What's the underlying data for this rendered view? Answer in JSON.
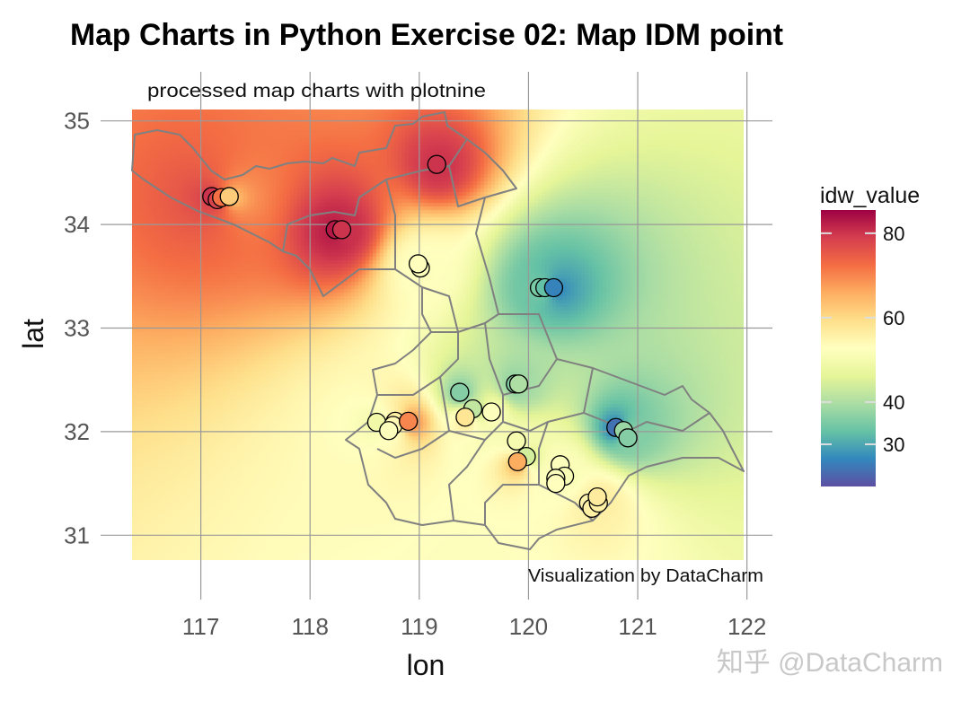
{
  "chart_data": {
    "type": "scatter",
    "title": "Map Charts in Python Exercise 02: Map IDM point",
    "subtitle": "processed map charts with plotnine",
    "caption": "Visualization by DataCharm",
    "xlabel": "lon",
    "ylabel": "lat",
    "xlim": [
      116.37,
      121.97
    ],
    "ylim": [
      30.76,
      35.11
    ],
    "x_ticks": [
      "117",
      "118",
      "119",
      "120",
      "121",
      "122"
    ],
    "y_ticks": [
      "31",
      "32",
      "33",
      "34",
      "35"
    ],
    "grid": true,
    "background": "IDW interpolated raster of idw_value",
    "legend": {
      "title": "idw_value",
      "position": "right",
      "ticks": [
        "30",
        "40",
        "60",
        "80"
      ],
      "range": [
        20,
        85.5
      ],
      "colormap": "Spectral (reversed)",
      "colors": [
        "#5e4fa2",
        "#3288bd",
        "#66c2a5",
        "#abdda4",
        "#e6f598",
        "#ffffbf",
        "#fee08b",
        "#fdae61",
        "#f46d43",
        "#d53e4f",
        "#9e0142"
      ]
    },
    "points": [
      {
        "lon": 117.1,
        "lat": 34.27,
        "value": 80
      },
      {
        "lon": 117.15,
        "lat": 34.24,
        "value": 78
      },
      {
        "lon": 117.19,
        "lat": 34.26,
        "value": 72
      },
      {
        "lon": 117.26,
        "lat": 34.27,
        "value": 62
      },
      {
        "lon": 118.23,
        "lat": 33.95,
        "value": 83
      },
      {
        "lon": 118.29,
        "lat": 33.95,
        "value": 80
      },
      {
        "lon": 119.16,
        "lat": 34.58,
        "value": 80
      },
      {
        "lon": 119.01,
        "lat": 33.58,
        "value": 52
      },
      {
        "lon": 118.99,
        "lat": 33.62,
        "value": 53
      },
      {
        "lon": 120.1,
        "lat": 33.39,
        "value": 35
      },
      {
        "lon": 120.15,
        "lat": 33.39,
        "value": 33
      },
      {
        "lon": 120.23,
        "lat": 33.39,
        "value": 26
      },
      {
        "lon": 119.37,
        "lat": 32.38,
        "value": 36
      },
      {
        "lon": 119.49,
        "lat": 32.22,
        "value": 42
      },
      {
        "lon": 119.66,
        "lat": 32.19,
        "value": 52
      },
      {
        "lon": 119.42,
        "lat": 32.14,
        "value": 58
      },
      {
        "lon": 119.88,
        "lat": 32.46,
        "value": 36
      },
      {
        "lon": 119.91,
        "lat": 32.46,
        "value": 40
      },
      {
        "lon": 118.61,
        "lat": 32.09,
        "value": 49
      },
      {
        "lon": 118.78,
        "lat": 32.1,
        "value": 56
      },
      {
        "lon": 118.76,
        "lat": 32.06,
        "value": 54
      },
      {
        "lon": 118.72,
        "lat": 32.01,
        "value": 52
      },
      {
        "lon": 118.9,
        "lat": 32.1,
        "value": 70
      },
      {
        "lon": 119.89,
        "lat": 31.91,
        "value": 50
      },
      {
        "lon": 119.98,
        "lat": 31.76,
        "value": 44
      },
      {
        "lon": 119.9,
        "lat": 31.71,
        "value": 66
      },
      {
        "lon": 120.8,
        "lat": 32.04,
        "value": 24
      },
      {
        "lon": 120.87,
        "lat": 32.01,
        "value": 38
      },
      {
        "lon": 120.91,
        "lat": 31.94,
        "value": 36
      },
      {
        "lon": 120.29,
        "lat": 31.68,
        "value": 52
      },
      {
        "lon": 120.33,
        "lat": 31.57,
        "value": 51
      },
      {
        "lon": 120.25,
        "lat": 31.55,
        "value": 52
      },
      {
        "lon": 120.25,
        "lat": 31.5,
        "value": 53
      },
      {
        "lon": 120.55,
        "lat": 31.31,
        "value": 55
      },
      {
        "lon": 120.58,
        "lat": 31.26,
        "value": 56
      },
      {
        "lon": 120.64,
        "lat": 31.31,
        "value": 56
      },
      {
        "lon": 120.63,
        "lat": 31.37,
        "value": 57
      }
    ]
  },
  "watermark": "知乎 @DataCharm"
}
